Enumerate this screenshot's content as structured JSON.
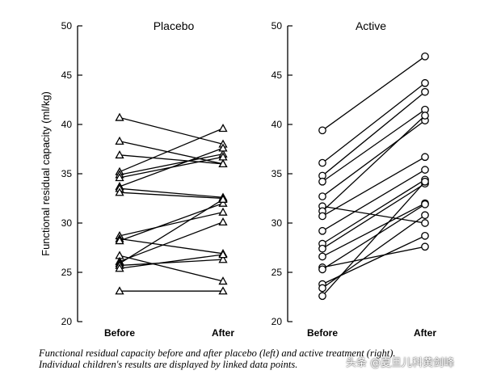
{
  "chart_data": [
    {
      "type": "line",
      "title": "Placebo",
      "categories": [
        "Before",
        "After"
      ],
      "ylabel": "Functional residual capacity (ml/kg)",
      "ylim": [
        20,
        50
      ],
      "yticks": [
        20,
        25,
        30,
        35,
        40,
        45,
        50
      ],
      "marker": "triangle",
      "pairs": [
        [
          40.7,
          38.0
        ],
        [
          38.3,
          36.0
        ],
        [
          36.9,
          36.0
        ],
        [
          35.2,
          39.6
        ],
        [
          34.9,
          37.0
        ],
        [
          34.6,
          36.7
        ],
        [
          33.7,
          37.6
        ],
        [
          33.5,
          32.6
        ],
        [
          33.1,
          32.5
        ],
        [
          28.7,
          31.1
        ],
        [
          28.4,
          26.9
        ],
        [
          28.2,
          32.0
        ],
        [
          26.7,
          24.1
        ],
        [
          26.1,
          30.1
        ],
        [
          25.9,
          32.4
        ],
        [
          25.7,
          26.3
        ],
        [
          25.4,
          26.8
        ],
        [
          23.1,
          23.1
        ]
      ]
    },
    {
      "type": "line",
      "title": "Active",
      "categories": [
        "Before",
        "After"
      ],
      "ylabel": "",
      "ylim": [
        20,
        50
      ],
      "yticks": [
        20,
        25,
        30,
        35,
        40,
        45,
        50
      ],
      "marker": "circle",
      "pairs": [
        [
          39.4,
          46.9
        ],
        [
          36.1,
          44.2
        ],
        [
          34.8,
          43.3
        ],
        [
          34.2,
          41.5
        ],
        [
          32.7,
          40.4
        ],
        [
          31.7,
          30.0
        ],
        [
          31.2,
          40.9
        ],
        [
          30.7,
          36.7
        ],
        [
          29.2,
          35.4
        ],
        [
          27.9,
          34.4
        ],
        [
          27.4,
          34.0
        ],
        [
          26.6,
          32.0
        ],
        [
          25.5,
          27.6
        ],
        [
          25.3,
          31.9
        ],
        [
          23.8,
          28.7
        ],
        [
          23.4,
          30.8
        ],
        [
          22.6,
          34.2
        ]
      ]
    }
  ],
  "caption": {
    "line1": "Functional residual capacity before and after placebo (left) and active treatment (right).",
    "line2": "Individual children's results are displayed by linked data points."
  },
  "watermark": "头条 @夏旦儿科黄剑峰"
}
